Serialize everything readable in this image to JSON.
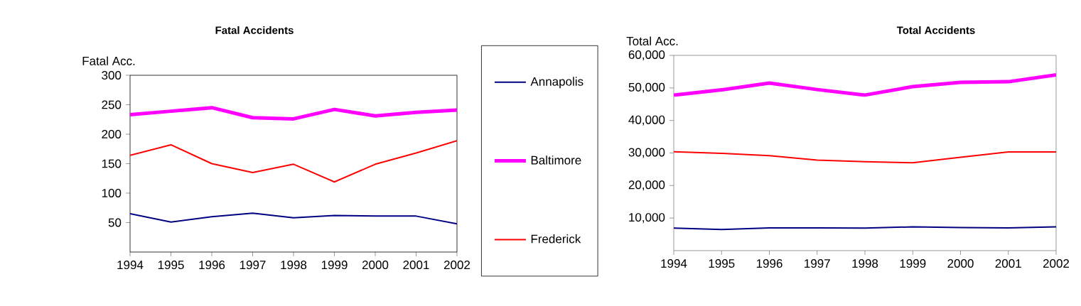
{
  "chart_data": [
    {
      "type": "line",
      "title": "Fatal Accidents",
      "ylabel": "Fatal Acc.",
      "categories": [
        "1994",
        "1995",
        "1996",
        "1997",
        "1998",
        "1999",
        "2000",
        "2001",
        "2002"
      ],
      "ylim": [
        0,
        300
      ],
      "yticks": [
        50,
        100,
        150,
        200,
        250,
        300
      ],
      "legend": "right",
      "series": [
        {
          "name": "Annapolis",
          "color": "#000080",
          "values": [
            65,
            51,
            60,
            66,
            58,
            62,
            61,
            61,
            48
          ]
        },
        {
          "name": "Baltimore",
          "color": "#ff00ff",
          "values": [
            233,
            239,
            245,
            228,
            226,
            242,
            231,
            237,
            241
          ]
        },
        {
          "name": "Frederick",
          "color": "#ff0000",
          "values": [
            164,
            182,
            150,
            135,
            149,
            119,
            149,
            168,
            189
          ]
        }
      ]
    },
    {
      "type": "line",
      "title": "Total Accidents",
      "ylabel": "Total Acc.",
      "categories": [
        "1994",
        "1995",
        "1996",
        "1997",
        "1998",
        "1999",
        "2000",
        "2001",
        "2002"
      ],
      "ylim": [
        0,
        60000
      ],
      "yticks": [
        {
          "value": 10000,
          "label": "10,000"
        },
        {
          "value": 20000,
          "label": "20,000"
        },
        {
          "value": 30000,
          "label": "30,000"
        },
        {
          "value": 40000,
          "label": "40,000"
        },
        {
          "value": 50000,
          "label": "50,000"
        },
        {
          "value": 60000,
          "label": "60,000"
        }
      ],
      "series": [
        {
          "color": "#000080",
          "values": [
            6900,
            6500,
            7000,
            7000,
            6900,
            7300,
            7100,
            7000,
            7300
          ]
        },
        {
          "color": "#ff00ff",
          "values": [
            47800,
            49400,
            51500,
            49500,
            47800,
            50400,
            51700,
            51900,
            54000
          ]
        },
        {
          "color": "#ff0000",
          "values": [
            30400,
            29900,
            29200,
            27800,
            27300,
            27000,
            28700,
            30300,
            30300
          ]
        }
      ]
    }
  ]
}
